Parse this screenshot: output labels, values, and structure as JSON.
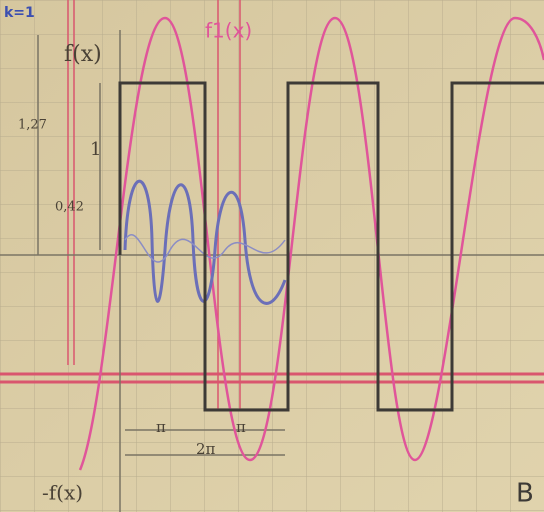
{
  "annotations": [
    {
      "text": "k=1"
    },
    {
      "text": "f(x)"
    },
    {
      "text": "f1(x)"
    },
    {
      "text": "1,27"
    },
    {
      "text": "1"
    },
    {
      "text": "0,42"
    },
    {
      "text": "π"
    },
    {
      "text": "π"
    },
    {
      "text": "2π"
    },
    {
      "text": "-f(x)"
    },
    {
      "text": "B"
    }
  ]
}
